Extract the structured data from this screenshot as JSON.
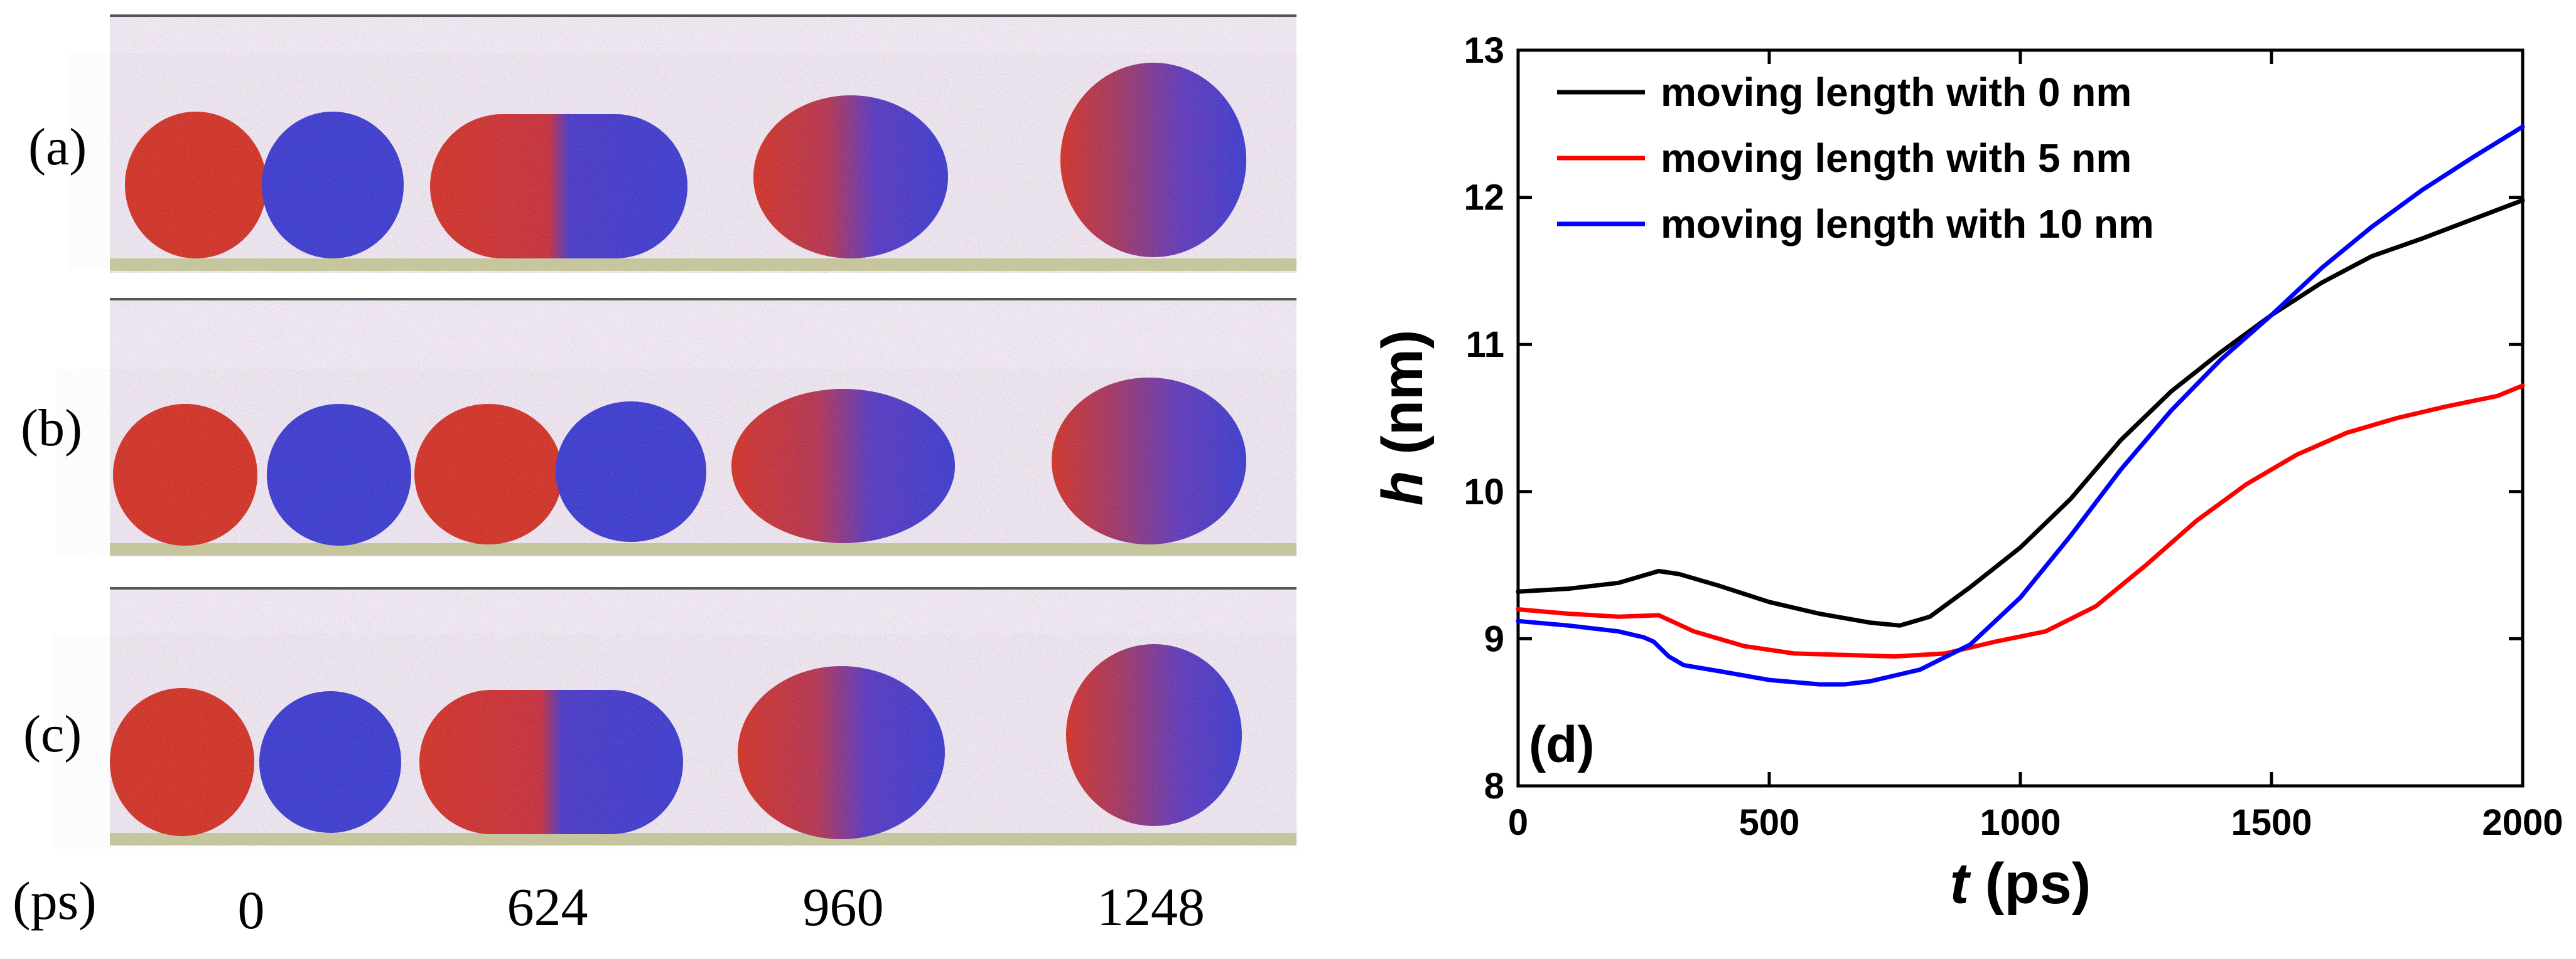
{
  "panels": [
    {
      "label": "(a)",
      "kind": "simulation-snapshots"
    },
    {
      "label": "(b)",
      "kind": "simulation-snapshots"
    },
    {
      "label": "(c)",
      "kind": "simulation-snapshots"
    }
  ],
  "time_axis": {
    "unit": "(ps)",
    "times": [
      "0",
      "624",
      "960",
      "1248"
    ]
  },
  "colors": {
    "droplet_red": "#d2473f",
    "droplet_blue": "#4f4ed0",
    "substrate": "#c8c8a0",
    "line_black": "#000000",
    "line_red": "#ff0000",
    "line_blue": "#0000ff"
  },
  "chart_data": {
    "type": "line",
    "panel_label": "(d)",
    "xlabel": {
      "var": "t",
      "unit": " (ps)"
    },
    "ylabel": {
      "var": "h",
      "unit": " (nm)"
    },
    "xlim": [
      0,
      2000
    ],
    "ylim": [
      8,
      13
    ],
    "xticks": [
      0,
      500,
      1000,
      1500,
      2000
    ],
    "yticks": [
      8,
      9,
      10,
      11,
      12,
      13
    ],
    "legend_position": "top-left",
    "series": [
      {
        "name": "moving length with 0 nm",
        "color": "#000000",
        "x": [
          0,
          100,
          200,
          250,
          280,
          320,
          400,
          500,
          600,
          700,
          760,
          820,
          900,
          1000,
          1100,
          1200,
          1300,
          1400,
          1500,
          1600,
          1700,
          1800,
          1900,
          2000
        ],
        "y": [
          9.32,
          9.34,
          9.38,
          9.43,
          9.46,
          9.44,
          9.36,
          9.25,
          9.17,
          9.11,
          9.09,
          9.15,
          9.35,
          9.62,
          9.95,
          10.35,
          10.68,
          10.95,
          11.2,
          11.42,
          11.6,
          11.72,
          11.85,
          11.98
        ]
      },
      {
        "name": "moving length with 5 nm",
        "color": "#ff0000",
        "x": [
          0,
          100,
          200,
          280,
          350,
          450,
          550,
          650,
          750,
          850,
          950,
          1050,
          1150,
          1250,
          1350,
          1450,
          1550,
          1650,
          1750,
          1850,
          1950,
          2000
        ],
        "y": [
          9.2,
          9.17,
          9.15,
          9.16,
          9.05,
          8.95,
          8.9,
          8.89,
          8.88,
          8.9,
          8.98,
          9.05,
          9.22,
          9.5,
          9.8,
          10.05,
          10.25,
          10.4,
          10.5,
          10.58,
          10.65,
          10.72
        ]
      },
      {
        "name": "moving length with 10 nm",
        "color": "#0000ff",
        "x": [
          0,
          100,
          200,
          250,
          270,
          300,
          330,
          400,
          500,
          600,
          650,
          700,
          800,
          900,
          1000,
          1100,
          1200,
          1300,
          1400,
          1500,
          1600,
          1700,
          1800,
          1900,
          2000
        ],
        "y": [
          9.12,
          9.09,
          9.05,
          9.01,
          8.98,
          8.88,
          8.82,
          8.78,
          8.72,
          8.69,
          8.69,
          8.71,
          8.79,
          8.96,
          9.28,
          9.7,
          10.15,
          10.55,
          10.9,
          11.2,
          11.52,
          11.8,
          12.05,
          12.27,
          12.48
        ]
      }
    ]
  }
}
